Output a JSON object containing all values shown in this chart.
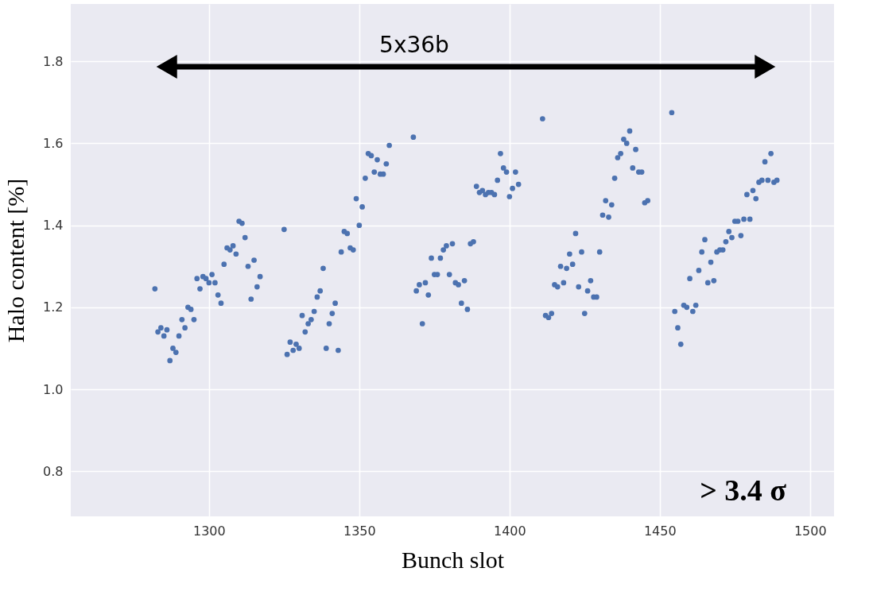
{
  "chart_data": {
    "type": "scatter",
    "xlabel": "Bunch slot",
    "ylabel": "Halo content [%]",
    "xlim": [
      1254,
      1508
    ],
    "ylim": [
      0.69,
      1.94
    ],
    "xticks": [
      {
        "value": 1300,
        "label": "1300"
      },
      {
        "value": 1350,
        "label": "1350"
      },
      {
        "value": 1400,
        "label": "1400"
      },
      {
        "value": 1450,
        "label": "1450"
      },
      {
        "value": 1500,
        "label": "1500"
      }
    ],
    "yticks": [
      {
        "value": 0.8,
        "label": "0.8"
      },
      {
        "value": 1.0,
        "label": "1.0"
      },
      {
        "value": 1.2,
        "label": "1.2"
      },
      {
        "value": 1.4,
        "label": "1.4"
      },
      {
        "value": 1.6,
        "label": "1.6"
      },
      {
        "value": 1.8,
        "label": "1.8"
      }
    ],
    "grid": true,
    "marker": "circle",
    "x": [
      1282,
      1283,
      1284,
      1285,
      1286,
      1287,
      1288,
      1289,
      1290,
      1291,
      1292,
      1293,
      1294,
      1295,
      1296,
      1297,
      1298,
      1299,
      1300,
      1301,
      1302,
      1303,
      1304,
      1305,
      1306,
      1307,
      1308,
      1309,
      1310,
      1311,
      1312,
      1313,
      1314,
      1315,
      1316,
      1317,
      1325,
      1326,
      1327,
      1328,
      1329,
      1330,
      1331,
      1332,
      1333,
      1334,
      1335,
      1336,
      1337,
      1338,
      1339,
      1340,
      1341,
      1342,
      1343,
      1344,
      1345,
      1346,
      1347,
      1348,
      1349,
      1350,
      1351,
      1352,
      1353,
      1354,
      1355,
      1356,
      1357,
      1358,
      1359,
      1360,
      1368,
      1369,
      1370,
      1371,
      1372,
      1373,
      1374,
      1375,
      1376,
      1377,
      1378,
      1379,
      1380,
      1381,
      1382,
      1383,
      1384,
      1385,
      1386,
      1387,
      1388,
      1389,
      1390,
      1391,
      1392,
      1393,
      1394,
      1395,
      1396,
      1397,
      1398,
      1399,
      1400,
      1401,
      1402,
      1403,
      1411,
      1412,
      1413,
      1414,
      1415,
      1416,
      1417,
      1418,
      1419,
      1420,
      1421,
      1422,
      1423,
      1424,
      1425,
      1426,
      1427,
      1428,
      1429,
      1430,
      1431,
      1432,
      1433,
      1434,
      1435,
      1436,
      1437,
      1438,
      1439,
      1440,
      1441,
      1442,
      1443,
      1444,
      1445,
      1446,
      1454,
      1455,
      1456,
      1457,
      1458,
      1459,
      1460,
      1461,
      1462,
      1463,
      1464,
      1465,
      1466,
      1467,
      1468,
      1469,
      1470,
      1471,
      1472,
      1473,
      1474,
      1475,
      1476,
      1477,
      1478,
      1479,
      1480,
      1481,
      1482,
      1483,
      1484,
      1485,
      1486,
      1487,
      1488,
      1489
    ],
    "series": [
      {
        "color": "#4c72b0",
        "values": [
          1.245,
          1.14,
          1.15,
          1.13,
          1.145,
          1.07,
          1.1,
          1.09,
          1.13,
          1.17,
          1.15,
          1.2,
          1.195,
          1.17,
          1.27,
          1.245,
          1.275,
          1.27,
          1.26,
          1.28,
          1.26,
          1.23,
          1.21,
          1.305,
          1.345,
          1.34,
          1.35,
          1.33,
          1.41,
          1.405,
          1.37,
          1.3,
          1.22,
          1.315,
          1.25,
          1.275,
          1.39,
          1.085,
          1.115,
          1.095,
          1.11,
          1.1,
          1.18,
          1.14,
          1.16,
          1.17,
          1.19,
          1.225,
          1.24,
          1.295,
          1.1,
          1.16,
          1.185,
          1.21,
          1.095,
          1.335,
          1.385,
          1.38,
          1.345,
          1.34,
          1.465,
          1.4,
          1.445,
          1.515,
          1.575,
          1.57,
          1.53,
          1.56,
          1.525,
          1.525,
          1.55,
          1.595,
          1.615,
          1.24,
          1.255,
          1.16,
          1.26,
          1.23,
          1.32,
          1.28,
          1.28,
          1.32,
          1.34,
          1.35,
          1.28,
          1.355,
          1.26,
          1.255,
          1.21,
          1.265,
          1.195,
          1.355,
          1.36,
          1.495,
          1.48,
          1.485,
          1.475,
          1.48,
          1.48,
          1.475,
          1.51,
          1.575,
          1.54,
          1.53,
          1.47,
          1.49,
          1.53,
          1.5,
          1.66,
          1.18,
          1.175,
          1.185,
          1.255,
          1.25,
          1.3,
          1.26,
          1.295,
          1.33,
          1.305,
          1.38,
          1.25,
          1.335,
          1.185,
          1.24,
          1.265,
          1.225,
          1.225,
          1.335,
          1.425,
          1.46,
          1.42,
          1.45,
          1.515,
          1.565,
          1.575,
          1.61,
          1.6,
          1.63,
          1.54,
          1.585,
          1.53,
          1.53,
          1.455,
          1.46,
          1.675,
          1.19,
          1.15,
          1.11,
          1.205,
          1.2,
          1.27,
          1.19,
          1.205,
          1.29,
          1.335,
          1.365,
          1.26,
          1.31,
          1.265,
          1.335,
          1.34,
          1.34,
          1.36,
          1.385,
          1.37,
          1.41,
          1.41,
          1.375,
          1.415,
          1.475,
          1.415,
          1.485,
          1.465,
          1.505,
          1.51,
          1.555,
          1.51,
          1.575,
          1.505,
          1.51
        ]
      }
    ],
    "annotations": [
      "5x36b",
      "> 3.4 σ"
    ]
  }
}
